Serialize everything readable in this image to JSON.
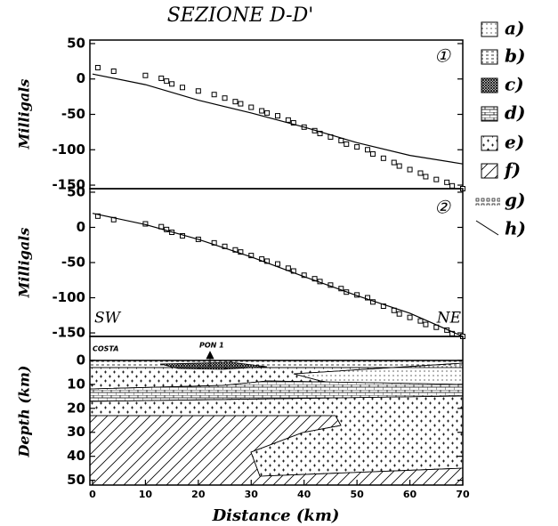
{
  "title": "SEZIONE D-D'",
  "legend": [
    "a)",
    "b)",
    "c)",
    "d)",
    "e)",
    "f)",
    "g)",
    "h)"
  ],
  "chart_data": [
    {
      "type": "gravity",
      "ylabel": "Milligals",
      "panel_label": "①",
      "xlim": [
        -0.5,
        70
      ],
      "ylim": [
        -155,
        55
      ],
      "yticks": [
        50,
        0,
        -50,
        -100,
        -150
      ],
      "series": [
        {
          "marker": "square",
          "color": "#000000",
          "x": [
            1,
            4,
            10,
            13,
            14,
            15,
            17,
            20,
            23,
            25,
            27,
            28,
            30,
            32,
            33,
            35,
            37,
            38,
            40,
            42,
            43,
            45,
            47,
            48,
            50,
            52,
            53,
            55,
            57,
            58,
            60,
            62,
            63,
            65,
            67,
            68,
            70
          ],
          "values": [
            16,
            11,
            5,
            1,
            -3,
            -7,
            -12,
            -17,
            -22,
            -27,
            -32,
            -35,
            -40,
            -45,
            -48,
            -52,
            -58,
            -62,
            -68,
            -73,
            -77,
            -82,
            -87,
            -92,
            -96,
            -100,
            -106,
            -112,
            -118,
            -123,
            -128,
            -133,
            -138,
            -142,
            -146,
            -151,
            -155
          ]
        },
        {
          "marker": "line",
          "color": "#000000",
          "x": [
            0,
            10,
            20,
            30,
            40,
            50,
            60,
            70
          ],
          "values": [
            7,
            -8,
            -30,
            -48,
            -68,
            -90,
            -108,
            -120
          ]
        }
      ]
    },
    {
      "type": "gravity",
      "ylabel": "Milligals",
      "panel_label": "②",
      "left_label": "SW",
      "right_label": "NE",
      "xlim": [
        -0.5,
        70
      ],
      "ylim": [
        -155,
        55
      ],
      "yticks": [
        50,
        0,
        -50,
        -100,
        -150
      ],
      "series": [
        {
          "marker": "square",
          "color": "#000000",
          "x": [
            1,
            4,
            10,
            13,
            14,
            15,
            17,
            20,
            23,
            25,
            27,
            28,
            30,
            32,
            33,
            35,
            37,
            38,
            40,
            42,
            43,
            45,
            47,
            48,
            50,
            52,
            53,
            55,
            57,
            58,
            60,
            62,
            63,
            65,
            67,
            68,
            70
          ],
          "values": [
            16,
            11,
            5,
            1,
            -3,
            -7,
            -12,
            -17,
            -22,
            -27,
            -32,
            -35,
            -40,
            -45,
            -48,
            -52,
            -58,
            -62,
            -68,
            -73,
            -77,
            -82,
            -87,
            -92,
            -96,
            -100,
            -106,
            -112,
            -118,
            -123,
            -128,
            -133,
            -138,
            -142,
            -146,
            -151,
            -155
          ]
        },
        {
          "marker": "line",
          "color": "#000000",
          "x": [
            0,
            10,
            20,
            30,
            40,
            50,
            60,
            70
          ],
          "values": [
            20,
            4,
            -17,
            -42,
            -70,
            -97,
            -122,
            -155
          ]
        }
      ]
    },
    {
      "type": "section",
      "ylabel": "Depth (km)",
      "xlabel": "Distance (km)",
      "coast_label": "COSTA",
      "well_label": "PON 1",
      "inverted": true,
      "xlim": [
        -0.5,
        70
      ],
      "xticks": [
        0,
        10,
        20,
        30,
        40,
        50,
        60,
        70
      ],
      "ylim": [
        -10,
        52
      ],
      "yticks": [
        0,
        10,
        20,
        30,
        40,
        50
      ]
    }
  ]
}
